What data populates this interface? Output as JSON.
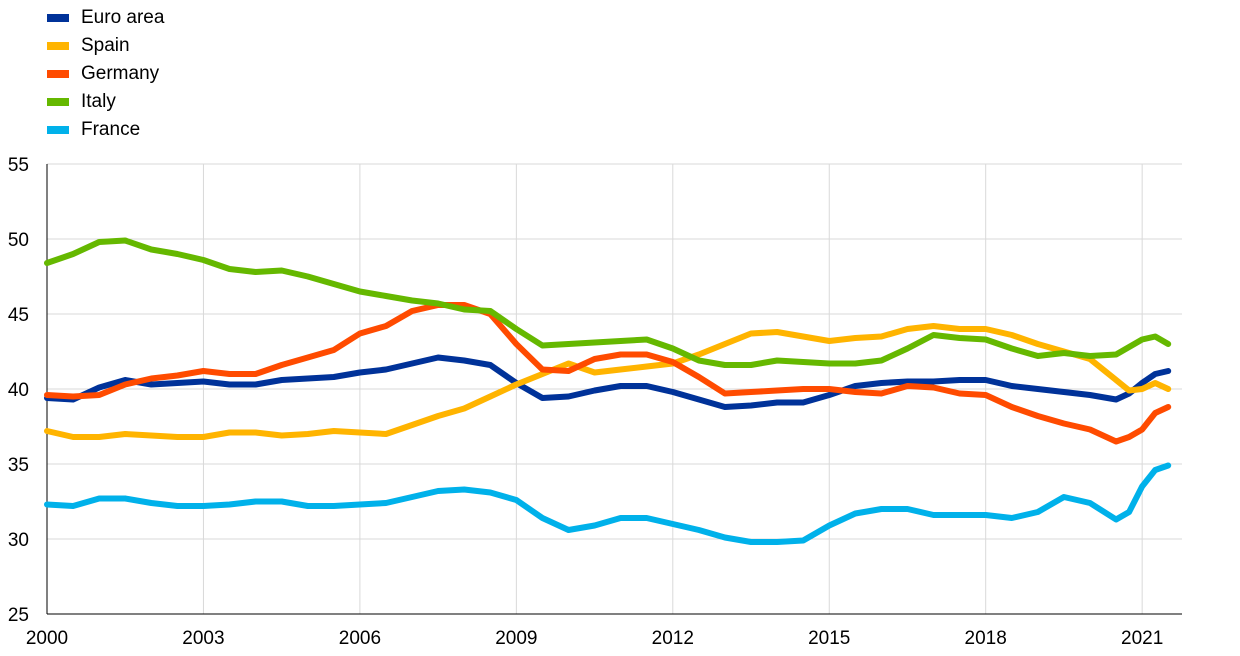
{
  "chart_data": {
    "type": "line",
    "title": "",
    "xlabel": "",
    "ylabel": "",
    "xlim": [
      2000,
      2021.75
    ],
    "ylim": [
      25,
      55
    ],
    "x_ticks": [
      "2000",
      "2003",
      "2006",
      "2009",
      "2012",
      "2015",
      "2018",
      "2021"
    ],
    "y_ticks": [
      "25",
      "30",
      "35",
      "40",
      "45",
      "50",
      "55"
    ],
    "grid": true,
    "legend_position": "top-left",
    "x": [
      2000,
      2000.5,
      2001,
      2001.5,
      2002,
      2002.5,
      2003,
      2003.5,
      2004,
      2004.5,
      2005,
      2005.5,
      2006,
      2006.5,
      2007,
      2007.5,
      2008,
      2008.5,
      2009,
      2009.5,
      2010,
      2010.5,
      2011,
      2011.5,
      2012,
      2012.5,
      2013,
      2013.5,
      2014,
      2014.5,
      2015,
      2015.5,
      2016,
      2016.5,
      2017,
      2017.5,
      2018,
      2018.5,
      2019,
      2019.5,
      2020,
      2020.5,
      2020.75,
      2021,
      2021.25,
      2021.5
    ],
    "series": [
      {
        "name": "Euro area",
        "color": "#003299",
        "values": [
          39.4,
          39.3,
          40.1,
          40.6,
          40.3,
          40.4,
          40.5,
          40.3,
          40.3,
          40.6,
          40.7,
          40.8,
          41.1,
          41.3,
          41.7,
          42.1,
          41.9,
          41.6,
          40.4,
          39.4,
          39.5,
          39.9,
          40.2,
          40.2,
          39.8,
          39.3,
          38.8,
          38.9,
          39.1,
          39.1,
          39.6,
          40.2,
          40.4,
          40.5,
          40.5,
          40.6,
          40.6,
          40.2,
          40.0,
          39.8,
          39.6,
          39.3,
          39.7,
          40.4,
          41.0,
          41.2
        ]
      },
      {
        "name": "Spain",
        "color": "#FFB400",
        "values": [
          37.2,
          36.8,
          36.8,
          37.0,
          36.9,
          36.8,
          36.8,
          37.1,
          37.1,
          36.9,
          37.0,
          37.2,
          37.1,
          37.0,
          37.6,
          38.2,
          38.7,
          39.5,
          40.3,
          41.0,
          41.7,
          41.1,
          41.3,
          41.5,
          41.7,
          42.3,
          43.0,
          43.7,
          43.8,
          43.5,
          43.2,
          43.4,
          43.5,
          44.0,
          44.2,
          44.0,
          44.0,
          43.6,
          43.0,
          42.5,
          42.0,
          40.6,
          39.9,
          40.0,
          40.4,
          40.0
        ]
      },
      {
        "name": "Germany",
        "color": "#FF4B00",
        "values": [
          39.6,
          39.5,
          39.6,
          40.3,
          40.7,
          40.9,
          41.2,
          41.0,
          41.0,
          41.6,
          42.1,
          42.6,
          43.7,
          44.2,
          45.2,
          45.6,
          45.6,
          45.0,
          43.0,
          41.3,
          41.2,
          42.0,
          42.3,
          42.3,
          41.8,
          40.8,
          39.7,
          39.8,
          39.9,
          40.0,
          40.0,
          39.8,
          39.7,
          40.2,
          40.1,
          39.7,
          39.6,
          38.8,
          38.2,
          37.7,
          37.3,
          36.5,
          36.8,
          37.3,
          38.4,
          38.8
        ]
      },
      {
        "name": "Italy",
        "color": "#65B800",
        "values": [
          48.4,
          49.0,
          49.8,
          49.9,
          49.3,
          49.0,
          48.6,
          48.0,
          47.8,
          47.9,
          47.5,
          47.0,
          46.5,
          46.2,
          45.9,
          45.7,
          45.3,
          45.2,
          44.0,
          42.9,
          43.0,
          43.1,
          43.2,
          43.3,
          42.7,
          41.9,
          41.6,
          41.6,
          41.9,
          41.8,
          41.7,
          41.7,
          41.9,
          42.7,
          43.6,
          43.4,
          43.3,
          42.7,
          42.2,
          42.4,
          42.2,
          42.3,
          42.8,
          43.3,
          43.5,
          43.0
        ]
      },
      {
        "name": "France",
        "color": "#00B1EA",
        "values": [
          32.3,
          32.2,
          32.7,
          32.7,
          32.4,
          32.2,
          32.2,
          32.3,
          32.5,
          32.5,
          32.2,
          32.2,
          32.3,
          32.4,
          32.8,
          33.2,
          33.3,
          33.1,
          32.6,
          31.4,
          30.6,
          30.9,
          31.4,
          31.4,
          31.0,
          30.6,
          30.1,
          29.8,
          29.8,
          29.9,
          30.9,
          31.7,
          32.0,
          32.0,
          31.6,
          31.6,
          31.6,
          31.4,
          31.8,
          32.8,
          32.4,
          31.3,
          31.8,
          33.5,
          34.6,
          34.9
        ]
      }
    ]
  }
}
